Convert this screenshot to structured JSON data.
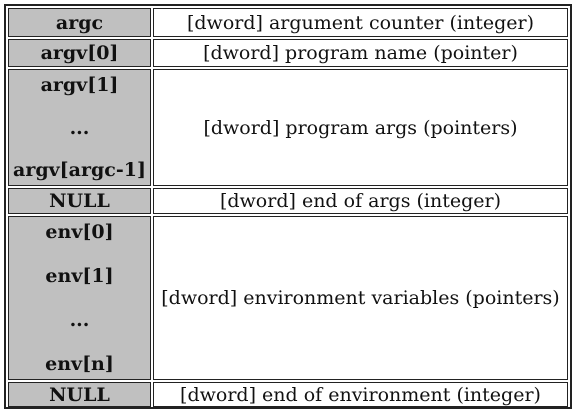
{
  "rows": [
    {
      "labels": [
        "argc"
      ],
      "description": "[dword] argument counter (integer)"
    },
    {
      "labels": [
        "argv[0]"
      ],
      "description": "[dword] program name (pointer)"
    },
    {
      "labels": [
        "argv[1]",
        "...",
        "argv[argc-1]"
      ],
      "description": "[dword] program args (pointers)"
    },
    {
      "labels": [
        "NULL"
      ],
      "description": "[dword] end of args (integer)"
    },
    {
      "labels": [
        "env[0]",
        "env[1]",
        "...",
        "env[n]"
      ],
      "description": "[dword] environment variables (pointers)"
    },
    {
      "labels": [
        "NULL"
      ],
      "description": "[dword] end of environment (integer)"
    }
  ],
  "colors": {
    "label_background": "#c0c0c0",
    "border": "#222222",
    "cell_background": "#ffffff"
  }
}
